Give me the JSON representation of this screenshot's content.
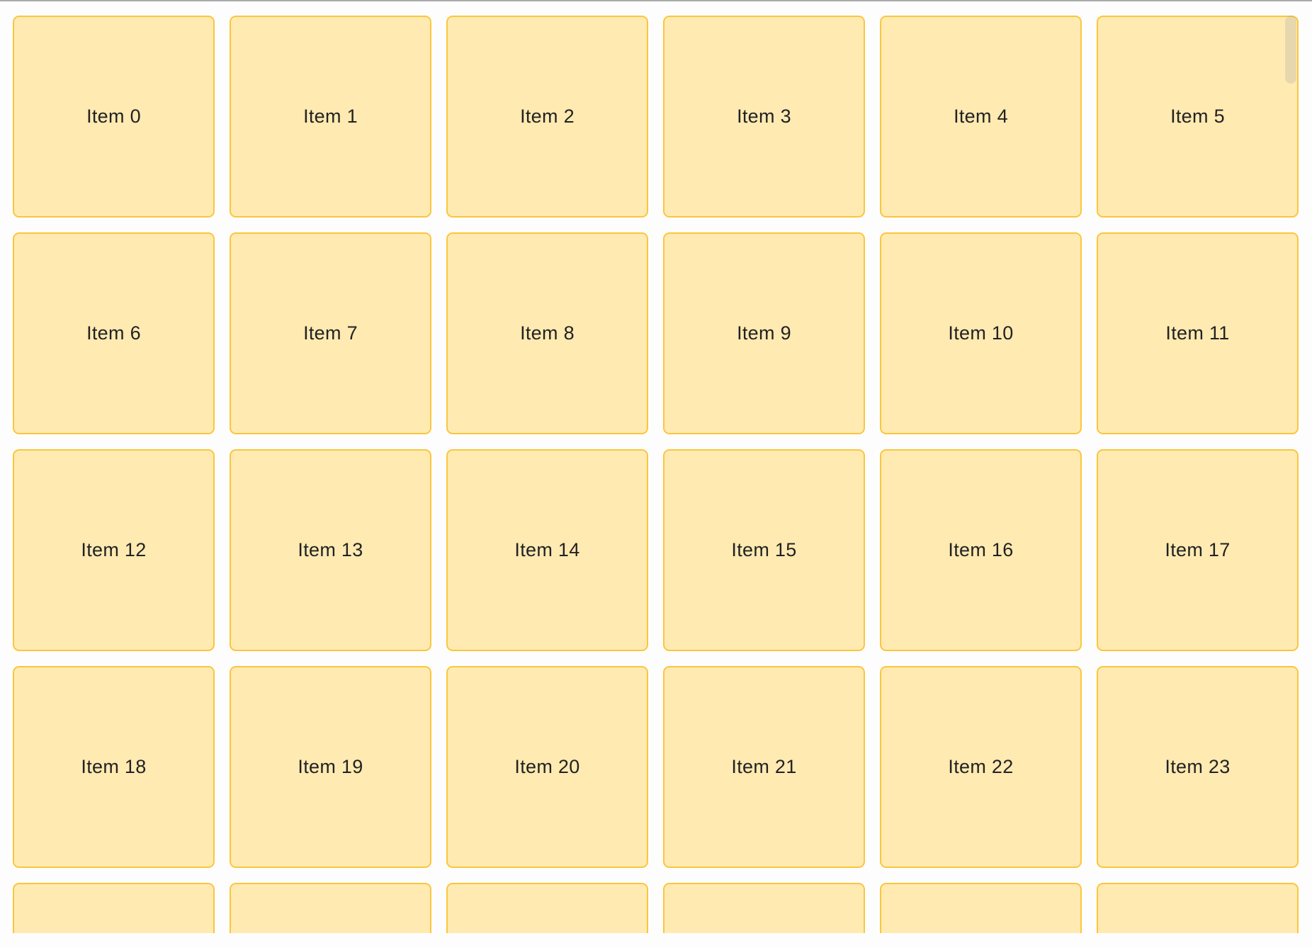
{
  "grid": {
    "items": [
      "Item 0",
      "Item 1",
      "Item 2",
      "Item 3",
      "Item 4",
      "Item 5",
      "Item 6",
      "Item 7",
      "Item 8",
      "Item 9",
      "Item 10",
      "Item 11",
      "Item 12",
      "Item 13",
      "Item 14",
      "Item 15",
      "Item 16",
      "Item 17",
      "Item 18",
      "Item 19",
      "Item 20",
      "Item 21",
      "Item 22",
      "Item 23",
      "",
      "",
      "",
      "",
      "",
      ""
    ]
  },
  "colors": {
    "tile_bg": "#ffeab2",
    "tile_border": "#fbc63e",
    "text": "#222222"
  }
}
